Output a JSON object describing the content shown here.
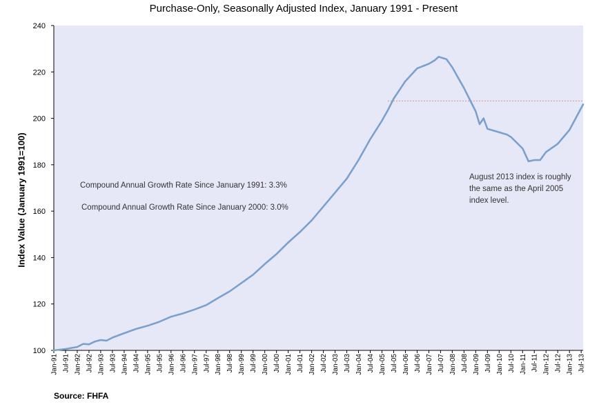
{
  "chart_data": {
    "type": "line",
    "title": "Purchase-Only, Seasonally Adjusted Index, January 1991 - Present",
    "ylabel": "Index Value (January 1991=100)",
    "xlabel": "",
    "ylim": [
      100,
      240
    ],
    "yticks": [
      100,
      120,
      140,
      160,
      180,
      200,
      220,
      240
    ],
    "xlim": [
      "1991-01",
      "2013-08"
    ],
    "xticks": [
      "Jan-91",
      "Jul-91",
      "Jan-92",
      "Jul-92",
      "Jan-93",
      "Jul-93",
      "Jan-94",
      "Jul-94",
      "Jan-95",
      "Jul-95",
      "Jan-96",
      "Jul-96",
      "Jan-97",
      "Jul-97",
      "Jan-98",
      "Jul-98",
      "Jan-99",
      "Jul-99",
      "Jan-00",
      "Jul-00",
      "Jan-01",
      "Jul-01",
      "Jan-02",
      "Jul-02",
      "Jan-03",
      "Jul-03",
      "Jan-04",
      "Jul-04",
      "Jan-05",
      "Jul-05",
      "Jan-06",
      "Jul-06",
      "Jan-07",
      "Jul-07",
      "Jan-08",
      "Jul-08",
      "Jan-09",
      "Jul-09",
      "Jan-10",
      "Jul-10",
      "Jan-11",
      "Jul-11",
      "Jan-12",
      "Jul-12",
      "Jan-13",
      "Jul-13"
    ],
    "grid": false,
    "legend": "none",
    "series": [
      {
        "color": "#7aa0cb",
        "points": [
          [
            "1991-01",
            100.0
          ],
          [
            "1991-07",
            100.6
          ],
          [
            "1992-01",
            101.5
          ],
          [
            "1992-04",
            102.8
          ],
          [
            "1992-07",
            102.6
          ],
          [
            "1992-10",
            103.8
          ],
          [
            "1993-01",
            104.5
          ],
          [
            "1993-04",
            104.2
          ],
          [
            "1993-07",
            105.5
          ],
          [
            "1994-01",
            107.4
          ],
          [
            "1994-07",
            109.2
          ],
          [
            "1995-01",
            110.6
          ],
          [
            "1995-07",
            112.3
          ],
          [
            "1996-01",
            114.5
          ],
          [
            "1996-07",
            115.9
          ],
          [
            "1997-01",
            117.6
          ],
          [
            "1997-07",
            119.5
          ],
          [
            "1998-01",
            122.5
          ],
          [
            "1998-07",
            125.4
          ],
          [
            "1999-01",
            129.0
          ],
          [
            "1999-07",
            132.6
          ],
          [
            "2000-01",
            137.2
          ],
          [
            "2000-07",
            141.5
          ],
          [
            "2001-01",
            146.5
          ],
          [
            "2001-07",
            151.0
          ],
          [
            "2002-01",
            156.0
          ],
          [
            "2002-07",
            162.0
          ],
          [
            "2003-01",
            168.0
          ],
          [
            "2003-07",
            174.0
          ],
          [
            "2004-01",
            182.0
          ],
          [
            "2004-07",
            191.0
          ],
          [
            "2005-01",
            199.0
          ],
          [
            "2005-04",
            203.5
          ],
          [
            "2005-07",
            208.5
          ],
          [
            "2006-01",
            216.0
          ],
          [
            "2006-07",
            221.5
          ],
          [
            "2007-01",
            223.5
          ],
          [
            "2007-04",
            225.0
          ],
          [
            "2007-06",
            226.5
          ],
          [
            "2007-10",
            225.5
          ],
          [
            "2008-01",
            222.0
          ],
          [
            "2008-07",
            213.0
          ],
          [
            "2009-01",
            203.0
          ],
          [
            "2009-03",
            197.5
          ],
          [
            "2009-05",
            200.0
          ],
          [
            "2009-07",
            195.5
          ],
          [
            "2010-01",
            194.0
          ],
          [
            "2010-05",
            193.0
          ],
          [
            "2010-07",
            192.0
          ],
          [
            "2011-01",
            187.0
          ],
          [
            "2011-04",
            181.5
          ],
          [
            "2011-07",
            182.0
          ],
          [
            "2011-10",
            182.0
          ],
          [
            "2012-01",
            185.5
          ],
          [
            "2012-07",
            189.0
          ],
          [
            "2013-01",
            195.0
          ],
          [
            "2013-08",
            206.0
          ]
        ]
      }
    ],
    "reference_line": {
      "from": "2005-04",
      "to": "2013-08",
      "value": 207.5,
      "color": "#e08c8c"
    },
    "annotations": [
      "Compound Annual Growth Rate Since January 1991:  3.3%",
      "Compound Annual Growth Rate Since January 2000:  3.0%",
      "August 2013 index is roughly the same as the April 2005 index level."
    ]
  },
  "colors": {
    "plot_bg": "#e6e8f7",
    "axis": "#000000"
  },
  "source": "Source: FHFA"
}
